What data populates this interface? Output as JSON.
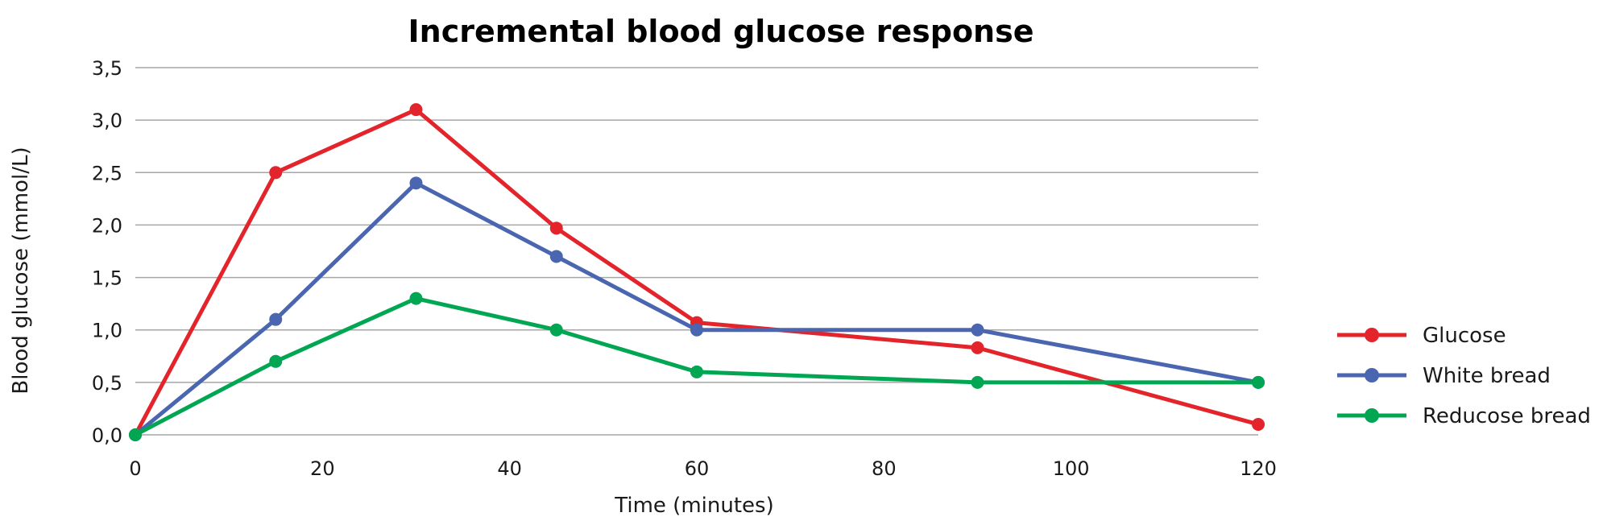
{
  "chart_data": {
    "type": "line",
    "title": "Incremental blood glucose response",
    "xlabel": "Time (minutes)",
    "ylabel": "Blood glucose (mmol/L)",
    "xlim": [
      0,
      120
    ],
    "ylim": [
      0,
      3.5
    ],
    "x_ticks": [
      0,
      20,
      40,
      60,
      80,
      100,
      120
    ],
    "x_tick_labels": [
      "0",
      "20",
      "40",
      "60",
      "80",
      "100",
      "120"
    ],
    "y_ticks": [
      0,
      0.5,
      1.0,
      1.5,
      2.0,
      2.5,
      3.0,
      3.5
    ],
    "y_tick_labels": [
      "0,0",
      "0,5",
      "1,0",
      "1,5",
      "2,0",
      "2,5",
      "3,0",
      "3,5"
    ],
    "grid": "horizontal",
    "legend_position": "right",
    "series": [
      {
        "name": "Glucose",
        "color": "#e3242b",
        "points": [
          [
            0,
            0
          ],
          [
            15,
            2.5
          ],
          [
            30,
            3.1
          ],
          [
            45,
            1.97
          ],
          [
            60,
            1.07
          ],
          [
            90,
            0.83
          ],
          [
            120,
            0.1
          ]
        ]
      },
      {
        "name": "White bread",
        "color": "#4a66b0",
        "points": [
          [
            0,
            0
          ],
          [
            15,
            1.1
          ],
          [
            30,
            2.4
          ],
          [
            45,
            1.7
          ],
          [
            60,
            1.0
          ],
          [
            90,
            1.0
          ],
          [
            120,
            0.5
          ]
        ]
      },
      {
        "name": "Reducose bread",
        "color": "#00a651",
        "points": [
          [
            0,
            0
          ],
          [
            15,
            0.7
          ],
          [
            30,
            1.3
          ],
          [
            45,
            1.0
          ],
          [
            60,
            0.6
          ],
          [
            90,
            0.5
          ],
          [
            120,
            0.5
          ]
        ]
      }
    ]
  }
}
